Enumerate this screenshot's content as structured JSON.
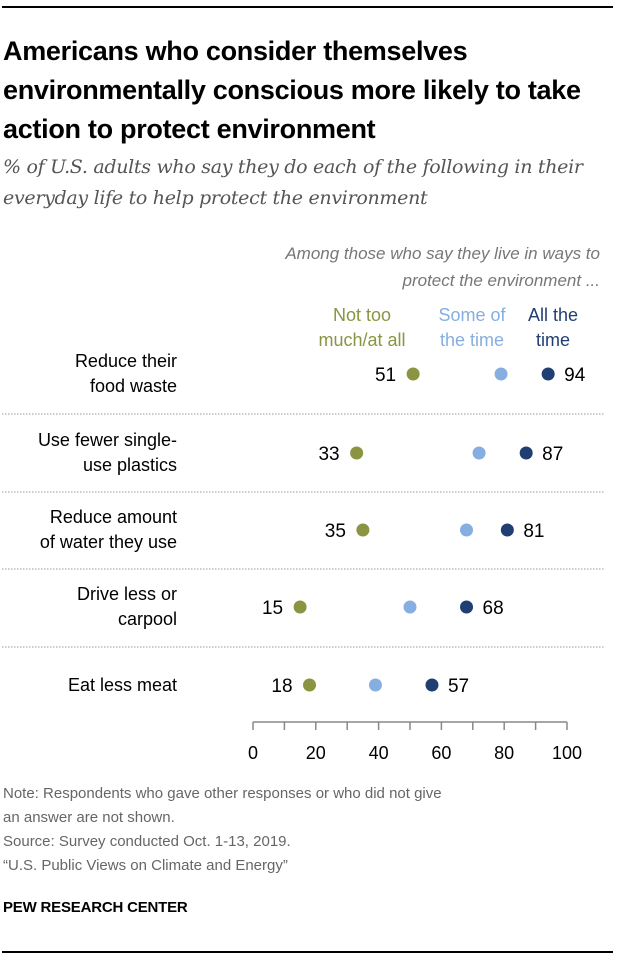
{
  "chart_data": {
    "type": "scatter",
    "subtype": "dot-plot",
    "title": "Americans who consider themselves environmentally conscious more likely to take action to protect environment",
    "subtitle": "% of U.S. adults who say they do each of the following in their everyday life to help protect the environment",
    "group_header": "Among those who say they live in ways to protect the environment ...",
    "categories": [
      [
        "Reduce their",
        "food waste"
      ],
      [
        "Use fewer single-",
        "use plastics"
      ],
      [
        "Reduce amount",
        "of water they use"
      ],
      [
        "Drive less or",
        "carpool"
      ],
      [
        "Eat less meat"
      ]
    ],
    "series": [
      {
        "name": "Not too much/at all",
        "legend_lines": [
          "Not too",
          "much/at all"
        ],
        "color": "#8a9441",
        "values": [
          51,
          33,
          35,
          15,
          18
        ],
        "labeled": true,
        "label_side": "left"
      },
      {
        "name": "Some of the time",
        "legend_lines": [
          "Some of",
          "the time"
        ],
        "color": "#86aee0",
        "values": [
          79,
          72,
          68,
          50,
          39
        ],
        "labeled": false
      },
      {
        "name": "All the time",
        "legend_lines": [
          "All the",
          "time"
        ],
        "color": "#1f3f73",
        "values": [
          94,
          87,
          81,
          68,
          57
        ],
        "labeled": true,
        "label_side": "right"
      }
    ],
    "xlim": [
      0,
      100
    ],
    "xticks": [
      0,
      20,
      40,
      60,
      80,
      100
    ],
    "minor_xticks": [
      10,
      30,
      50,
      70,
      90
    ],
    "xlabel": "",
    "ylabel": "",
    "grid": false,
    "legend": "top"
  },
  "notes": [
    "Note: Respondents who gave other responses or who did not give",
    "an answer are not shown.",
    "Source: Survey conducted Oct. 1-13, 2019.",
    "“U.S. Public Views on Climate and Energy”"
  ],
  "brand": "PEW RESEARCH CENTER"
}
